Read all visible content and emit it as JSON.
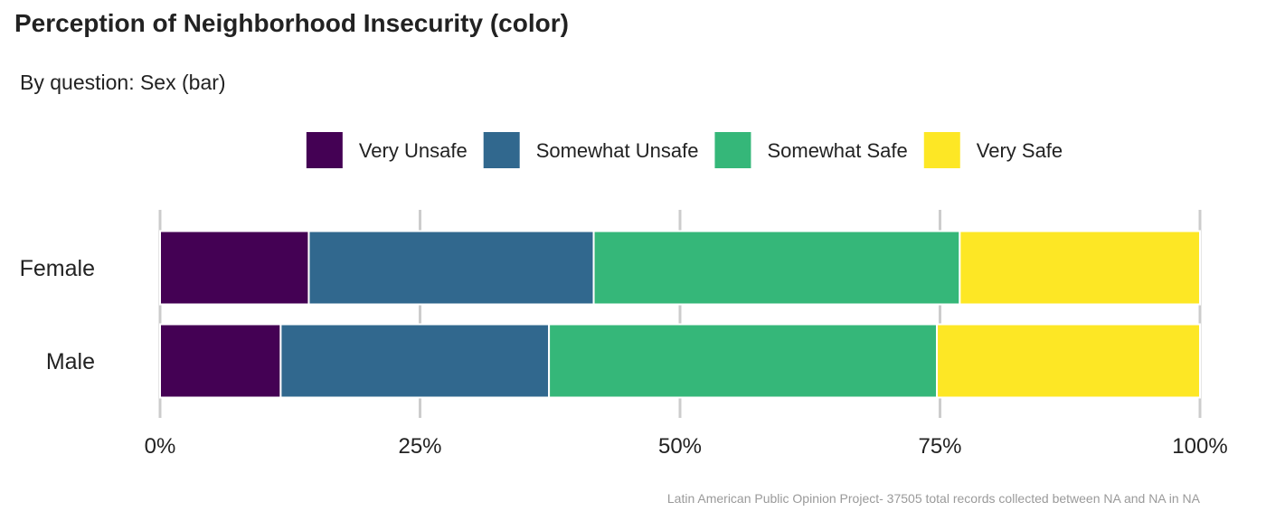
{
  "chart_data": {
    "type": "bar",
    "orientation": "horizontal",
    "stacked": true,
    "title": "Perception of Neighborhood Insecurity (color)",
    "subtitle": "By question: Sex (bar)",
    "caption": "Latin American Public Opinion Project- 37505 total records collected between NA and NA in  NA",
    "categories": [
      "Female",
      "Male"
    ],
    "series": [
      {
        "name": "Very Unsafe",
        "color": "#440154",
        "values": [
          14.3,
          11.6
        ]
      },
      {
        "name": "Somewhat Unsafe",
        "color": "#31688E",
        "values": [
          27.4,
          25.8
        ]
      },
      {
        "name": "Somewhat Safe",
        "color": "#35B779",
        "values": [
          35.2,
          37.3
        ]
      },
      {
        "name": "Very Safe",
        "color": "#FDE725",
        "values": [
          23.1,
          25.3
        ]
      }
    ],
    "xlim": [
      0,
      100
    ],
    "xticks": [
      0,
      25,
      50,
      75,
      100
    ],
    "xtick_labels": [
      "0%",
      "25%",
      "50%",
      "75%",
      "100%"
    ],
    "grid": "vertical major gridlines",
    "legend_position": "top"
  }
}
